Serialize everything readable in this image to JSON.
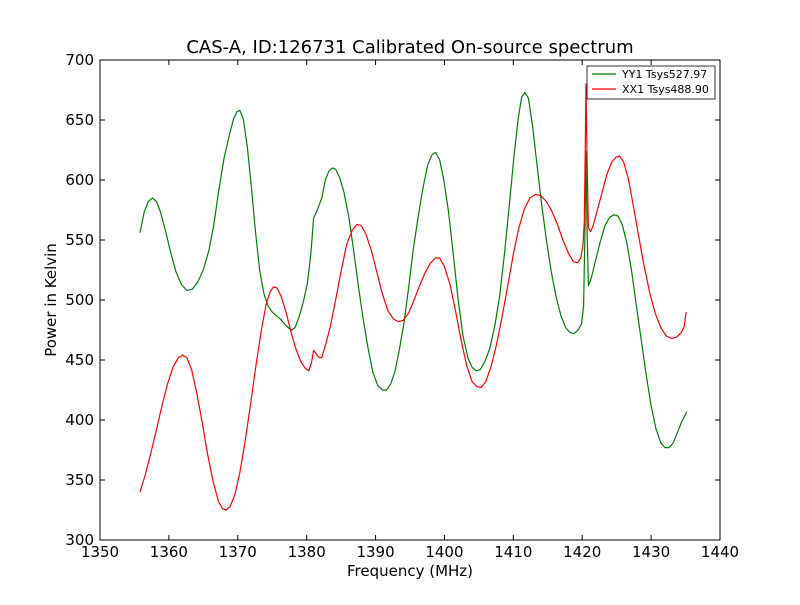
{
  "chart_data": {
    "type": "line",
    "title": "CAS-A, ID:126731 Calibrated On-source spectrum",
    "xlabel": "Frequency (MHz)",
    "ylabel": "Power in Kelvin",
    "xlim": [
      1350,
      1440
    ],
    "ylim": [
      300,
      700
    ],
    "xticks": [
      1350,
      1360,
      1370,
      1380,
      1390,
      1400,
      1410,
      1420,
      1430,
      1440
    ],
    "yticks": [
      300,
      350,
      400,
      450,
      500,
      550,
      600,
      650,
      700
    ],
    "grid": false,
    "legend_position": "top-right",
    "series": [
      {
        "name": "YY1 Tsys527.97",
        "color": "#008000",
        "points": [
          [
            1355.8,
            556
          ],
          [
            1356.4,
            573
          ],
          [
            1357.0,
            582
          ],
          [
            1357.6,
            585
          ],
          [
            1358.2,
            582
          ],
          [
            1358.8,
            573
          ],
          [
            1359.5,
            558
          ],
          [
            1360.2,
            541
          ],
          [
            1361.0,
            524
          ],
          [
            1361.8,
            513
          ],
          [
            1362.6,
            508
          ],
          [
            1363.4,
            509
          ],
          [
            1364.2,
            515
          ],
          [
            1365.0,
            525
          ],
          [
            1365.8,
            541
          ],
          [
            1366.5,
            562
          ],
          [
            1367.2,
            590
          ],
          [
            1368.0,
            618
          ],
          [
            1368.8,
            638
          ],
          [
            1369.4,
            651
          ],
          [
            1369.9,
            657
          ],
          [
            1370.3,
            658
          ],
          [
            1370.8,
            651
          ],
          [
            1371.4,
            627
          ],
          [
            1372.0,
            592
          ],
          [
            1372.6,
            555
          ],
          [
            1373.2,
            524
          ],
          [
            1373.8,
            505
          ],
          [
            1374.4,
            495
          ],
          [
            1375.0,
            490
          ],
          [
            1375.6,
            487
          ],
          [
            1376.2,
            484
          ],
          [
            1376.8,
            480
          ],
          [
            1377.3,
            477
          ],
          [
            1377.8,
            475
          ],
          [
            1378.3,
            477
          ],
          [
            1378.9,
            486
          ],
          [
            1379.5,
            498
          ],
          [
            1380.1,
            514
          ],
          [
            1380.6,
            538
          ],
          [
            1381.0,
            568
          ],
          [
            1381.6,
            576
          ],
          [
            1382.2,
            585
          ],
          [
            1382.7,
            600
          ],
          [
            1383.2,
            607
          ],
          [
            1383.7,
            610
          ],
          [
            1384.2,
            609
          ],
          [
            1384.8,
            602
          ],
          [
            1385.4,
            590
          ],
          [
            1386.1,
            570
          ],
          [
            1386.8,
            542
          ],
          [
            1387.5,
            512
          ],
          [
            1388.2,
            484
          ],
          [
            1388.9,
            460
          ],
          [
            1389.6,
            440
          ],
          [
            1390.3,
            429
          ],
          [
            1391.0,
            425
          ],
          [
            1391.6,
            425
          ],
          [
            1392.2,
            430
          ],
          [
            1392.8,
            440
          ],
          [
            1393.4,
            457
          ],
          [
            1394.1,
            480
          ],
          [
            1394.8,
            510
          ],
          [
            1395.5,
            543
          ],
          [
            1396.2,
            570
          ],
          [
            1396.9,
            594
          ],
          [
            1397.6,
            613
          ],
          [
            1398.2,
            621
          ],
          [
            1398.7,
            623
          ],
          [
            1399.3,
            617
          ],
          [
            1399.9,
            600
          ],
          [
            1400.6,
            573
          ],
          [
            1401.3,
            537
          ],
          [
            1402.0,
            500
          ],
          [
            1402.7,
            470
          ],
          [
            1403.4,
            452
          ],
          [
            1404.0,
            444
          ],
          [
            1404.6,
            441
          ],
          [
            1405.2,
            442
          ],
          [
            1405.9,
            449
          ],
          [
            1406.6,
            460
          ],
          [
            1407.3,
            478
          ],
          [
            1408.0,
            503
          ],
          [
            1408.7,
            538
          ],
          [
            1409.4,
            578
          ],
          [
            1410.1,
            620
          ],
          [
            1410.7,
            651
          ],
          [
            1411.2,
            669
          ],
          [
            1411.7,
            673
          ],
          [
            1412.2,
            668
          ],
          [
            1412.8,
            645
          ],
          [
            1413.4,
            614
          ],
          [
            1414.1,
            580
          ],
          [
            1414.8,
            550
          ],
          [
            1415.5,
            524
          ],
          [
            1416.2,
            503
          ],
          [
            1416.9,
            487
          ],
          [
            1417.6,
            477
          ],
          [
            1418.2,
            473
          ],
          [
            1418.8,
            472
          ],
          [
            1419.4,
            475
          ],
          [
            1419.9,
            480
          ],
          [
            1420.2,
            495
          ],
          [
            1420.4,
            560
          ],
          [
            1420.55,
            624
          ],
          [
            1420.7,
            560
          ],
          [
            1420.9,
            512
          ],
          [
            1421.3,
            518
          ],
          [
            1421.9,
            532
          ],
          [
            1422.6,
            548
          ],
          [
            1423.3,
            562
          ],
          [
            1424.0,
            569
          ],
          [
            1424.6,
            571
          ],
          [
            1425.2,
            570
          ],
          [
            1425.8,
            563
          ],
          [
            1426.5,
            547
          ],
          [
            1427.2,
            523
          ],
          [
            1427.9,
            494
          ],
          [
            1428.6,
            465
          ],
          [
            1429.3,
            437
          ],
          [
            1430.0,
            412
          ],
          [
            1430.7,
            393
          ],
          [
            1431.4,
            381
          ],
          [
            1432.0,
            377
          ],
          [
            1432.6,
            377
          ],
          [
            1433.2,
            381
          ],
          [
            1433.8,
            389
          ],
          [
            1434.4,
            398
          ],
          [
            1435.2,
            407
          ]
        ]
      },
      {
        "name": "XX1 Tsys488.90",
        "color": "#ff0000",
        "points": [
          [
            1355.8,
            340
          ],
          [
            1356.6,
            355
          ],
          [
            1357.4,
            373
          ],
          [
            1358.2,
            392
          ],
          [
            1359.0,
            412
          ],
          [
            1359.8,
            430
          ],
          [
            1360.6,
            444
          ],
          [
            1361.4,
            452
          ],
          [
            1362.0,
            454
          ],
          [
            1362.6,
            452
          ],
          [
            1363.3,
            442
          ],
          [
            1364.0,
            424
          ],
          [
            1364.8,
            399
          ],
          [
            1365.6,
            372
          ],
          [
            1366.4,
            349
          ],
          [
            1367.2,
            332
          ],
          [
            1367.8,
            326
          ],
          [
            1368.3,
            325
          ],
          [
            1368.9,
            328
          ],
          [
            1369.6,
            338
          ],
          [
            1370.3,
            356
          ],
          [
            1371.0,
            380
          ],
          [
            1371.8,
            411
          ],
          [
            1372.6,
            444
          ],
          [
            1373.4,
            474
          ],
          [
            1374.1,
            496
          ],
          [
            1374.7,
            507
          ],
          [
            1375.2,
            511
          ],
          [
            1375.7,
            510
          ],
          [
            1376.3,
            503
          ],
          [
            1377.0,
            490
          ],
          [
            1377.7,
            474
          ],
          [
            1378.4,
            460
          ],
          [
            1379.1,
            449
          ],
          [
            1379.8,
            443
          ],
          [
            1380.3,
            441
          ],
          [
            1380.7,
            448
          ],
          [
            1381.0,
            458
          ],
          [
            1381.4,
            455
          ],
          [
            1381.8,
            452
          ],
          [
            1382.2,
            452
          ],
          [
            1382.7,
            462
          ],
          [
            1383.4,
            477
          ],
          [
            1384.2,
            500
          ],
          [
            1385.0,
            524
          ],
          [
            1385.8,
            546
          ],
          [
            1386.6,
            558
          ],
          [
            1387.3,
            563
          ],
          [
            1387.9,
            562
          ],
          [
            1388.6,
            555
          ],
          [
            1389.4,
            541
          ],
          [
            1390.2,
            523
          ],
          [
            1391.0,
            505
          ],
          [
            1391.8,
            491
          ],
          [
            1392.6,
            484
          ],
          [
            1393.3,
            482
          ],
          [
            1394.0,
            483
          ],
          [
            1394.8,
            489
          ],
          [
            1395.6,
            500
          ],
          [
            1396.4,
            512
          ],
          [
            1397.2,
            523
          ],
          [
            1398.0,
            531
          ],
          [
            1398.7,
            535
          ],
          [
            1399.3,
            535
          ],
          [
            1400.0,
            528
          ],
          [
            1400.8,
            513
          ],
          [
            1401.6,
            491
          ],
          [
            1402.4,
            467
          ],
          [
            1403.2,
            446
          ],
          [
            1404.0,
            432
          ],
          [
            1404.7,
            428
          ],
          [
            1405.3,
            427
          ],
          [
            1406.0,
            432
          ],
          [
            1406.8,
            445
          ],
          [
            1407.6,
            464
          ],
          [
            1408.4,
            487
          ],
          [
            1409.2,
            512
          ],
          [
            1410.0,
            538
          ],
          [
            1410.8,
            560
          ],
          [
            1411.6,
            576
          ],
          [
            1412.4,
            585
          ],
          [
            1413.2,
            588
          ],
          [
            1414.0,
            587
          ],
          [
            1414.8,
            582
          ],
          [
            1415.6,
            574
          ],
          [
            1416.4,
            563
          ],
          [
            1417.2,
            550
          ],
          [
            1418.0,
            539
          ],
          [
            1418.7,
            532
          ],
          [
            1419.3,
            531
          ],
          [
            1419.8,
            535
          ],
          [
            1420.1,
            545
          ],
          [
            1420.3,
            565
          ],
          [
            1420.45,
            630
          ],
          [
            1420.55,
            680
          ],
          [
            1420.7,
            620
          ],
          [
            1420.9,
            560
          ],
          [
            1421.2,
            557
          ],
          [
            1421.6,
            562
          ],
          [
            1422.2,
            575
          ],
          [
            1422.9,
            590
          ],
          [
            1423.6,
            605
          ],
          [
            1424.3,
            615
          ],
          [
            1424.9,
            619
          ],
          [
            1425.4,
            620
          ],
          [
            1426.0,
            615
          ],
          [
            1426.7,
            601
          ],
          [
            1427.4,
            579
          ],
          [
            1428.2,
            553
          ],
          [
            1429.0,
            528
          ],
          [
            1429.8,
            506
          ],
          [
            1430.6,
            489
          ],
          [
            1431.4,
            477
          ],
          [
            1432.2,
            470
          ],
          [
            1433.0,
            468
          ],
          [
            1433.7,
            469
          ],
          [
            1434.4,
            473
          ],
          [
            1434.8,
            478
          ],
          [
            1435.1,
            490
          ]
        ]
      }
    ]
  }
}
